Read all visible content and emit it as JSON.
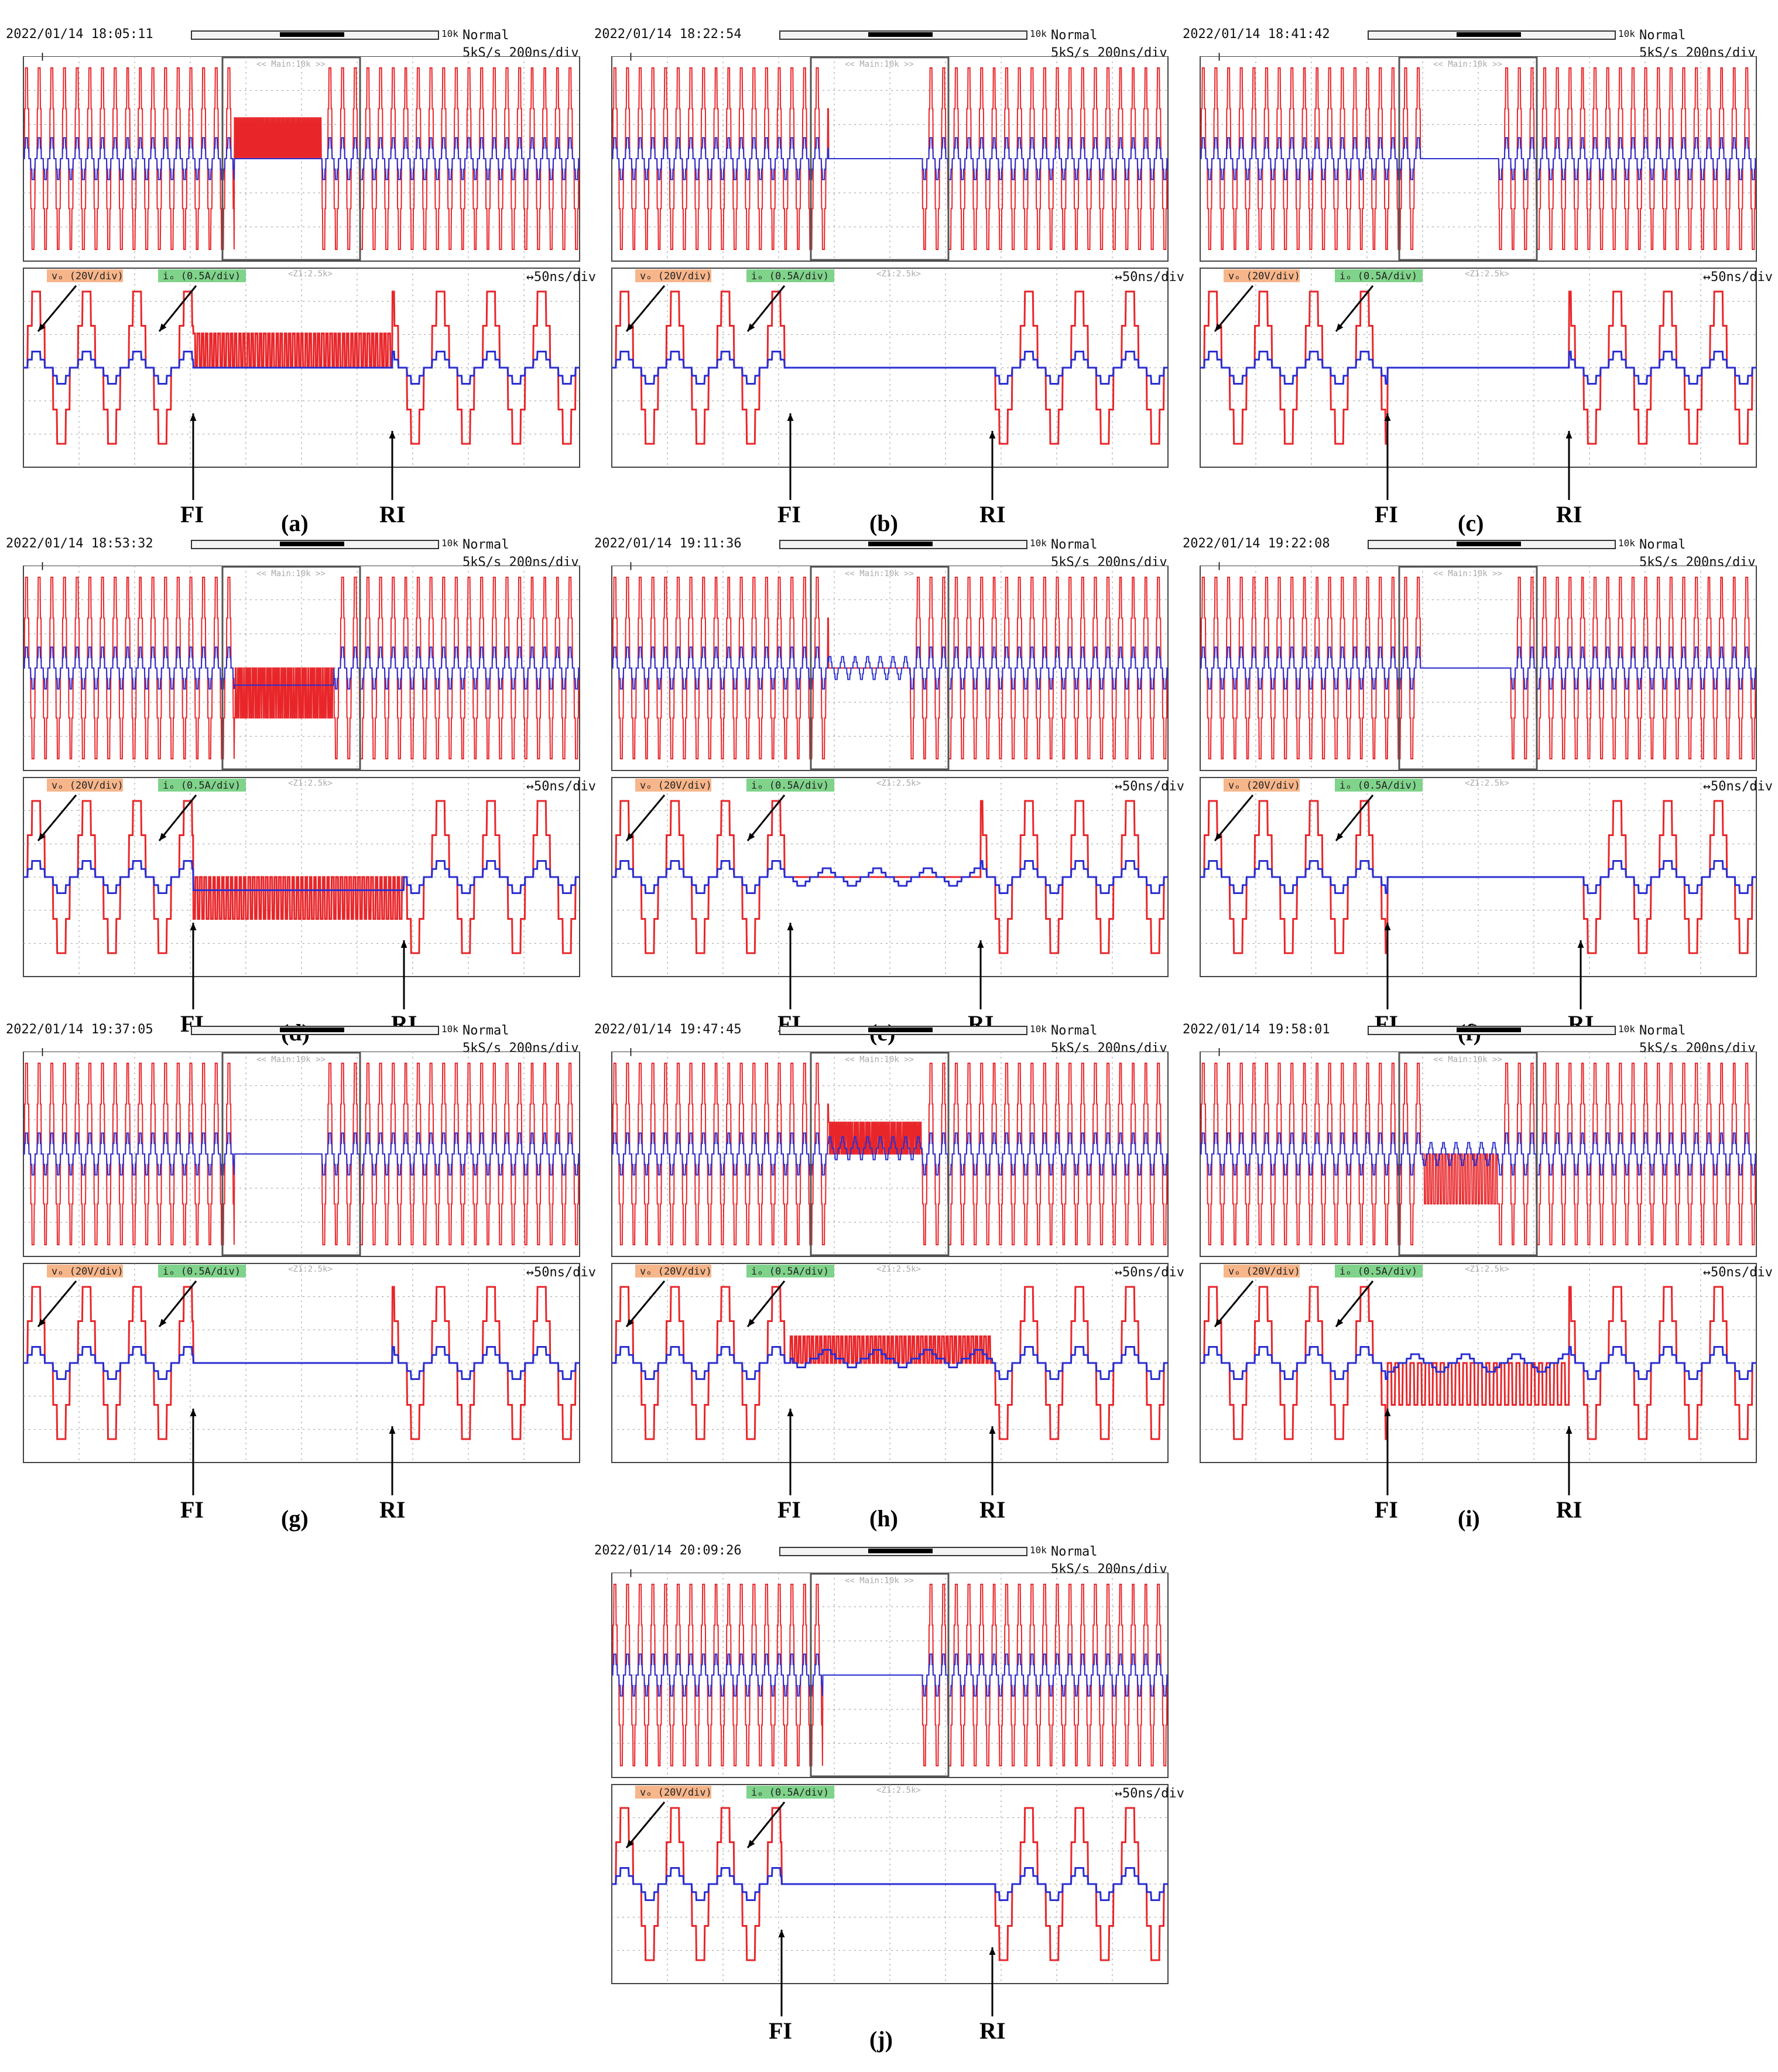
{
  "figure": {
    "labels": {
      "v_channel": "vₒ (20V/div)",
      "i_channel": "iₒ (0.5A/div)",
      "fault_injection": "FI",
      "recovery": "RI",
      "mode": "Normal",
      "sample_rate": "5kS/s 200ns/div",
      "zoom_rate": "↔50ns/div",
      "main_label": "<< Main:10k >>",
      "zoom_label": "<Z1:2.5k>",
      "record_length": "10k"
    },
    "colors": {
      "voltage": "#e8262a",
      "current": "#2a2fd0",
      "grid": "#9a9a9a",
      "frame": "#444444",
      "v_tag": "#f7b58a",
      "i_tag": "#7fd38a",
      "bg": "#ffffff"
    }
  },
  "chart_data": [
    {
      "id": "a",
      "caption": "(a)",
      "timestamp": "2022/01/14 18:05:11",
      "type": "line",
      "fault": {
        "v_level": 0.55,
        "i_level": 0.0,
        "profile": "pulse"
      }
    },
    {
      "id": "b",
      "caption": "(b)",
      "timestamp": "2022/01/14 18:22:54",
      "type": "line",
      "fault": {
        "v_level": 0.0,
        "i_level": 0.0,
        "profile": "zero"
      }
    },
    {
      "id": "c",
      "caption": "(c)",
      "timestamp": "2022/01/14 18:41:42",
      "type": "line",
      "fault": {
        "v_level": 0.0,
        "i_level": 0.0,
        "profile": "zero"
      }
    },
    {
      "id": "d",
      "caption": "(d)",
      "timestamp": "2022/01/14 18:53:32",
      "type": "line",
      "fault": {
        "v_level": -0.55,
        "i_level": -0.45,
        "profile": "neg"
      }
    },
    {
      "id": "e",
      "caption": "(e)",
      "timestamp": "2022/01/14 19:11:36",
      "type": "line",
      "fault": {
        "v_level": 0.0,
        "i_level": 0.0,
        "profile": "half"
      }
    },
    {
      "id": "f",
      "caption": "(f)",
      "timestamp": "2022/01/14 19:22:08",
      "type": "line",
      "fault": {
        "v_level": 0.0,
        "i_level": 0.0,
        "profile": "zero"
      }
    },
    {
      "id": "g",
      "caption": "(g)",
      "timestamp": "2022/01/14 19:37:05",
      "type": "line",
      "fault": {
        "v_level": 0.0,
        "i_level": 0.0,
        "profile": "zero"
      }
    },
    {
      "id": "h",
      "caption": "(h)",
      "timestamp": "2022/01/14 19:47:45",
      "type": "line",
      "fault": {
        "v_level": 0.0,
        "i_level": 0.0,
        "profile": "pos"
      }
    },
    {
      "id": "i",
      "caption": "(i)",
      "timestamp": "2022/01/14 19:58:01",
      "type": "line",
      "fault": {
        "v_level": 0.0,
        "i_level": 0.0,
        "profile": "mixed"
      }
    },
    {
      "id": "j",
      "caption": "(j)",
      "timestamp": "2022/01/14 20:09:26",
      "type": "line",
      "fault": {
        "v_level": 0.0,
        "i_level": 0.0,
        "profile": "zero"
      }
    }
  ]
}
